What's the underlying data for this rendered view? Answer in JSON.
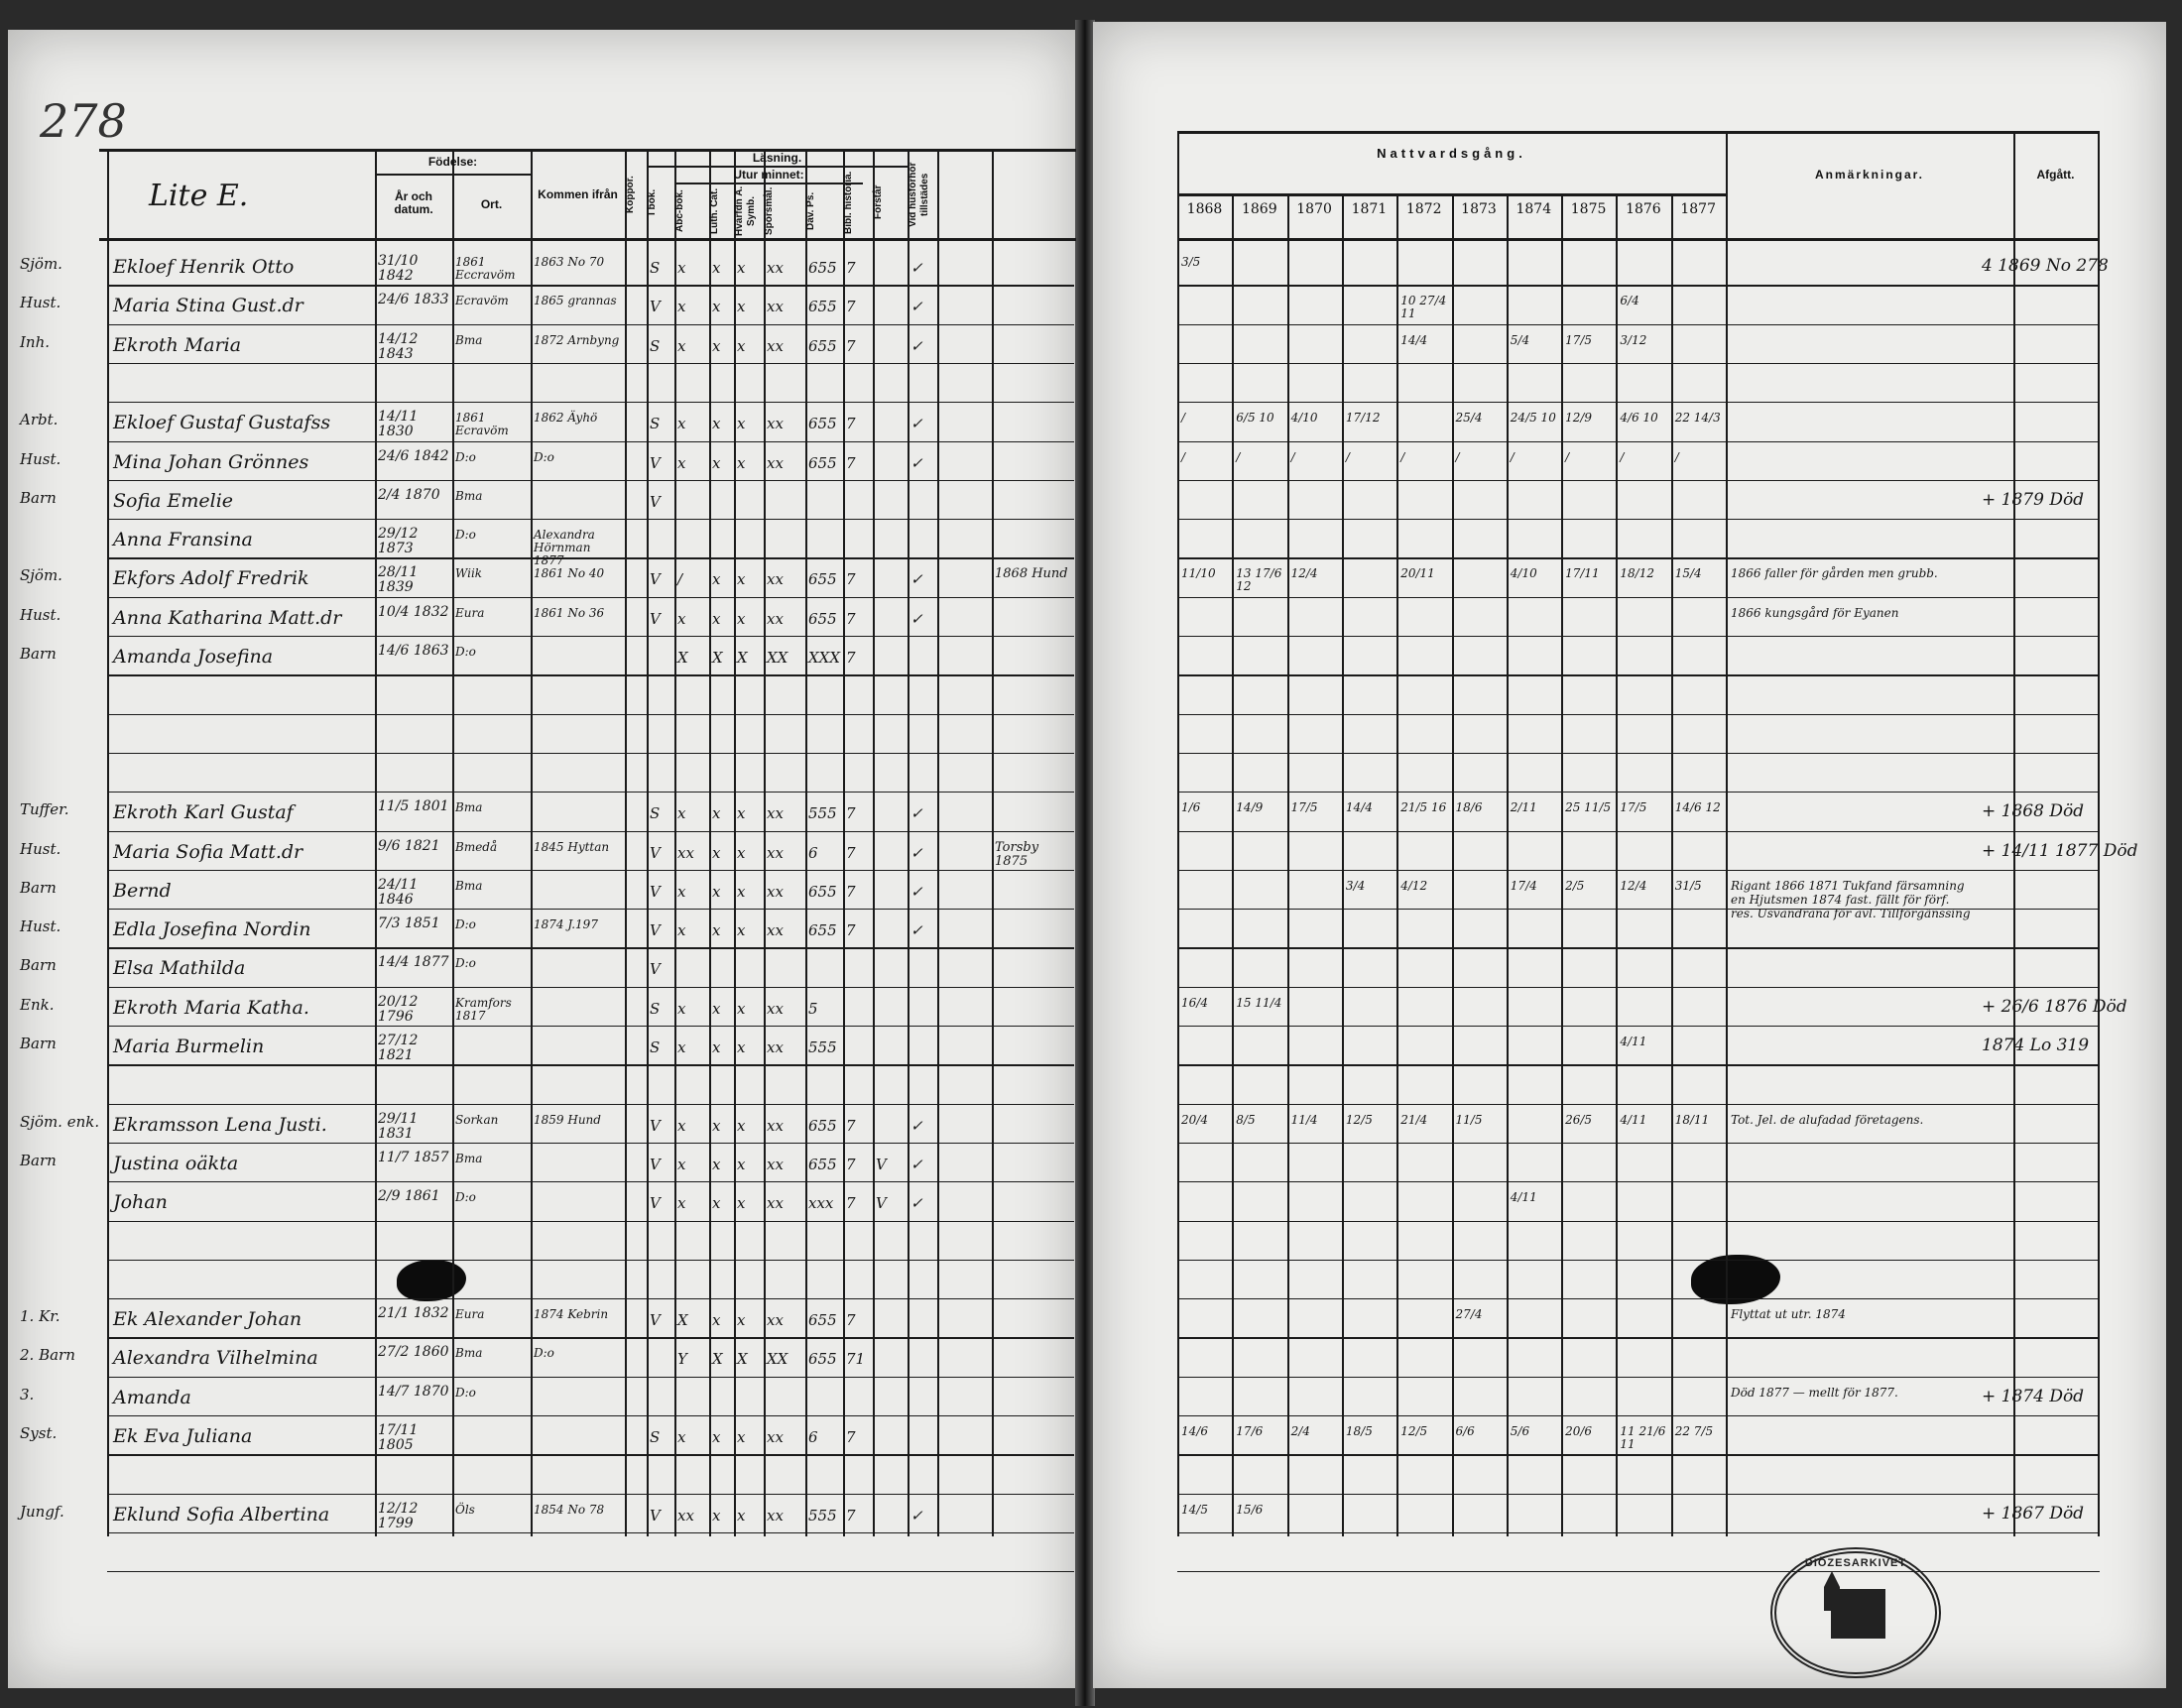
{
  "page_number": "278",
  "section_title": "Lite E.",
  "left_headers": {
    "fodelse": "Födelse:",
    "ar_datum": "År och datum.",
    "ort": "Ort.",
    "kommen": "Kommen ifrån",
    "koppor": "Koppor.",
    "lasning": "Läsning.",
    "utur_minnet": "Utur minnet:",
    "i_bok": "I bok.",
    "abc": "Abc-bok.",
    "luth": "Luth. Cat.",
    "hvad": "Hvarfdn A. Symb.",
    "sporsmal": "Spörsmål.",
    "dav": "Dav. Ps.",
    "bibl": "Bibl. historia.",
    "forstar": "Förstår",
    "vid": "Vid husförhör tillstädes"
  },
  "right_headers": {
    "nattvard": "Nattvardsgång.",
    "years": [
      "1868",
      "1869",
      "1870",
      "1871",
      "1872",
      "1873",
      "1874",
      "1875",
      "1876",
      "1877"
    ],
    "anmarkningar": "Anmärkningar.",
    "afgatt": "Afgått."
  },
  "rows": [
    {
      "role": "Sjöm.",
      "name": "Ekloef Henrik Otto",
      "date": "31/10 1842",
      "ort": "1861 Eccravöm",
      "from": "1863 No 70",
      "reading": [
        "S",
        "x",
        "x",
        "x",
        "xx",
        "655",
        "7",
        "",
        "✓"
      ],
      "communion": {
        "0": "3/5"
      },
      "afgatt": "4 1869 No 278"
    },
    {
      "role": "Hust.",
      "name": "Maria Stina Gust.dr",
      "date": "24/6 1833",
      "ort": "Ecravöm",
      "from": "1865 grannas",
      "reading": [
        "V",
        "x",
        "x",
        "x",
        "xx",
        "655",
        "7",
        "",
        "✓"
      ],
      "communion": {
        "4": "10 27/4 11",
        "8": "6/4"
      }
    },
    {
      "role": "Inh.",
      "name": "Ekroth Maria",
      "date": "14/12 1843",
      "ort": "Bma",
      "from": "1872 Arnbyng",
      "reading": [
        "S",
        "x",
        "x",
        "x",
        "xx",
        "655",
        "7",
        "",
        "✓"
      ],
      "communion": {
        "4": "14/4",
        "6": "5/4",
        "7": "17/5",
        "8": "3/12"
      }
    },
    {},
    {
      "role": "Arbt.",
      "name": "Ekloef Gustaf Gustafss",
      "date": "14/11 1830",
      "ort": "1861 Ecravöm",
      "from": "1862 Äyhö",
      "reading": [
        "S",
        "x",
        "x",
        "x",
        "xx",
        "655",
        "7",
        "",
        "✓"
      ],
      "communion": {
        "0": "/",
        "1": "6/5 10",
        "2": "4/10",
        "3": "17/12",
        "5": "25/4",
        "6": "24/5 10",
        "7": "12/9",
        "8": "4/6 10",
        "9": "22 14/3"
      }
    },
    {
      "role": "Hust.",
      "name": "Mina Johan Grönnes",
      "date": "24/6 1842",
      "ort": "D:o",
      "from": "D:o",
      "reading": [
        "V",
        "x",
        "x",
        "x",
        "xx",
        "655",
        "7",
        "",
        "✓"
      ],
      "communion": {
        "0": "/",
        "1": "/",
        "2": "/",
        "3": "/",
        "4": "/",
        "5": "/",
        "6": "/",
        "7": "/",
        "8": "/",
        "9": "/"
      }
    },
    {
      "role": "Barn",
      "name": "Sofia Emelie",
      "date": "2/4 1870",
      "ort": "Bma",
      "from": "",
      "reading": [
        "V"
      ],
      "afgatt": "+ 1879 Död"
    },
    {
      "name": "Anna Fransina",
      "date": "29/12 1873",
      "ort": "D:o",
      "from": "Alexandra Hörnman 1877",
      "reading": []
    },
    {
      "role": "Sjöm.",
      "name": "Ekfors Adolf Fredrik",
      "date": "28/11 1839",
      "ort": "Wiik",
      "from": "1861 No 40",
      "reading": [
        "V",
        "/",
        "x",
        "x",
        "xx",
        "655",
        "7",
        "",
        "✓"
      ],
      "extra": "1868 Hund",
      "communion": {
        "0": "11/10",
        "1": "13 17/6 12",
        "2": "12/4",
        "4": "20/11",
        "6": "4/10",
        "7": "17/11",
        "8": "18/12",
        "9": "15/4"
      },
      "remark": "1866 faller för gården men grubb."
    },
    {
      "role": "Hust.",
      "name": "Anna Katharina Matt.dr",
      "date": "10/4 1832",
      "ort": "Eura",
      "from": "1861 No 36",
      "reading": [
        "V",
        "x",
        "x",
        "x",
        "xx",
        "655",
        "7",
        "",
        "✓"
      ],
      "remark": "1866 kungsgård för Eyanen"
    },
    {
      "role": "Barn",
      "name": "Amanda Josefina",
      "date": "14/6 1863",
      "ort": "D:o",
      "from": "",
      "reading": [
        "",
        "X",
        "X",
        "X",
        "XX",
        "XXX",
        "7"
      ]
    },
    {},
    {},
    {},
    {
      "role": "Tuffer.",
      "name": "Ekroth Karl Gustaf",
      "date": "11/5 1801",
      "ort": "Bma",
      "from": "",
      "reading": [
        "S",
        "x",
        "x",
        "x",
        "xx",
        "555",
        "7",
        "",
        "✓"
      ],
      "communion": {
        "0": "1/6",
        "1": "14/9",
        "2": "17/5",
        "3": "14/4",
        "4": "21/5 16",
        "5": "18/6",
        "6": "2/11",
        "7": "25 11/5",
        "8": "17/5",
        "9": "14/6 12"
      },
      "afgatt": "+ 1868 Död"
    },
    {
      "role": "Hust.",
      "name": "Maria Sofia Matt.dr",
      "date": "9/6 1821",
      "ort": "Bmedå",
      "from": "1845 Hyttan",
      "reading": [
        "V",
        "xx",
        "x",
        "x",
        "xx",
        "6",
        "7",
        "",
        "✓"
      ],
      "extra": "Torsby 1875",
      "afgatt": "+ 14/11 1877 Död"
    },
    {
      "role": "Barn",
      "name": "Bernd",
      "date": "24/11 1846",
      "ort": "Bma",
      "from": "",
      "reading": [
        "V",
        "x",
        "x",
        "x",
        "xx",
        "655",
        "7",
        "",
        "✓"
      ],
      "communion": {
        "3": "3/4",
        "4": "4/12",
        "6": "17/4",
        "7": "2/5",
        "8": "12/4",
        "9": "31/5"
      },
      "remark": "Rigant 1866 1871 Tukfand färsamning en Hjutsmen 1874 fast. fällt för förf. res. Usvandrana för avl. Tillförgänssing"
    },
    {
      "role": "Hust.",
      "name": "Edla Josefina Nordin",
      "date": "7/3 1851",
      "ort": "D:o",
      "from": "1874 J.197",
      "reading": [
        "V",
        "x",
        "x",
        "x",
        "xx",
        "655",
        "7",
        "",
        "✓"
      ]
    },
    {
      "role": "Barn",
      "name": "Elsa Mathilda",
      "date": "14/4 1877",
      "ort": "D:o",
      "from": "",
      "reading": [
        "V"
      ]
    },
    {
      "role": "Enk.",
      "name": "Ekroth Maria Katha.",
      "date": "20/12 1796",
      "ort": "Kramfors 1817",
      "from": "",
      "reading": [
        "S",
        "x",
        "x",
        "x",
        "xx",
        "5"
      ],
      "communion": {
        "0": "16/4",
        "1": "15 11/4"
      },
      "afgatt": "+ 26/6 1876 Död"
    },
    {
      "role": "Barn",
      "name": "Maria Burmelin",
      "date": "27/12 1821",
      "ort": "",
      "from": "",
      "reading": [
        "S",
        "x",
        "x",
        "x",
        "xx",
        "555"
      ],
      "communion": {
        "8": "4/11"
      },
      "afgatt": "1874 Lo 319"
    },
    {},
    {
      "role": "Sjöm. enk.",
      "name": "Ekramsson Lena Justi.",
      "date": "29/11 1831",
      "ort": "Sorkan",
      "from": "1859 Hund",
      "reading": [
        "V",
        "x",
        "x",
        "x",
        "xx",
        "655",
        "7",
        "",
        "✓"
      ],
      "communion": {
        "0": "20/4",
        "1": "8/5",
        "2": "11/4",
        "3": "12/5",
        "4": "21/4",
        "5": "11/5",
        "7": "26/5",
        "8": "4/11",
        "9": "18/11"
      },
      "remark": "Tot. Jel. de alufadad företagens."
    },
    {
      "role": "Barn",
      "name": "Justina oäkta",
      "date": "11/7 1857",
      "ort": "Bma",
      "from": "",
      "reading": [
        "V",
        "x",
        "x",
        "x",
        "xx",
        "655",
        "7",
        "V",
        "✓"
      ]
    },
    {
      "name": "Johan",
      "date": "2/9 1861",
      "ort": "D:o",
      "from": "",
      "reading": [
        "V",
        "x",
        "x",
        "x",
        "xx",
        "xxx",
        "7",
        "V",
        "✓"
      ],
      "communion": {
        "6": "4/11"
      }
    },
    {},
    {},
    {
      "role": "1. Kr.",
      "name": "Ek Alexander Johan",
      "date": "21/1 1832",
      "ort": "Eura",
      "from": "1874 Kebrin",
      "reading": [
        "V",
        "X",
        "x",
        "x",
        "xx",
        "655",
        "7"
      ],
      "communion": {
        "5": "27/4"
      },
      "remark": "Flyttat ut utr. 1874"
    },
    {
      "role": "2. Barn",
      "name": "Alexandra Vilhelmina",
      "date": "27/2 1860",
      "ort": "Bma",
      "from": "D:o",
      "reading": [
        "",
        "Y",
        "X",
        "X",
        "XX",
        "655",
        "71"
      ]
    },
    {
      "role": "3.",
      "name": "Amanda",
      "date": "14/7 1870",
      "ort": "D:o",
      "from": "",
      "reading": [],
      "remark": "Död 1877 — mellt för 1877.",
      "afgatt": "+ 1874 Död"
    },
    {
      "role": "Syst.",
      "name": "Ek Eva Juliana",
      "date": "17/11 1805",
      "ort": "",
      "from": "",
      "reading": [
        "S",
        "x",
        "x",
        "x",
        "xx",
        "6",
        "7"
      ],
      "communion": {
        "0": "14/6",
        "1": "17/6",
        "2": "2/4",
        "3": "18/5",
        "4": "12/5",
        "5": "6/6",
        "6": "5/6",
        "7": "20/6",
        "8": "11 21/6 11",
        "9": "22 7/5"
      }
    },
    {},
    {
      "role": "Jungf.",
      "name": "Eklund Sofia Albertina",
      "date": "12/12 1799",
      "ort": "Öls",
      "from": "1854 No 78",
      "reading": [
        "V",
        "xx",
        "x",
        "x",
        "xx",
        "555",
        "7",
        "",
        "✓"
      ],
      "communion": {
        "0": "14/5",
        "1": "15/6"
      },
      "afgatt": "+ 1867 Död"
    }
  ],
  "stamp_text": "DIÖZESARKIVET"
}
